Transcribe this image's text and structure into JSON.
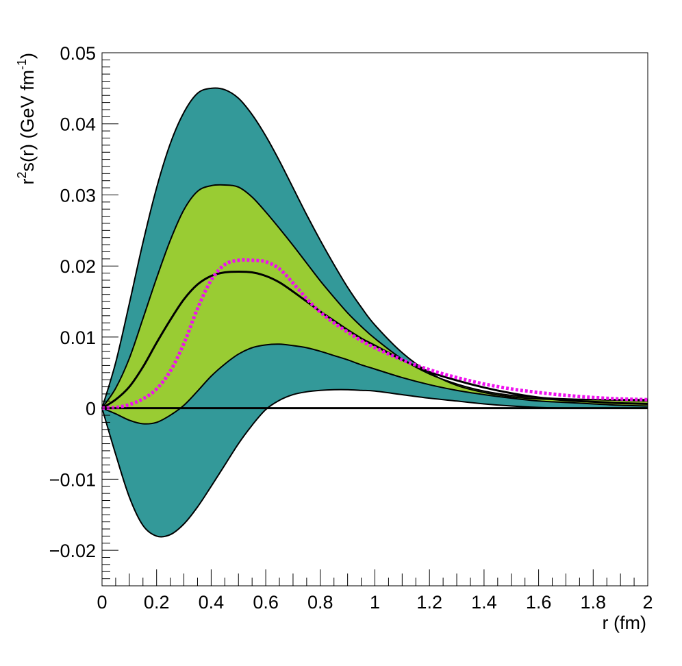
{
  "chart_data": {
    "type": "area",
    "xlabel": "r (fm)",
    "ylabel": {
      "base": "r",
      "sup1": "2",
      "mid": "s(r) (GeV fm",
      "sup2": "-1",
      "end": ")"
    },
    "xlim": [
      0,
      2
    ],
    "ylim": [
      -0.025,
      0.05
    ],
    "x_ticks": [
      0,
      0.2,
      0.4,
      0.6,
      0.8,
      1,
      1.2,
      1.4,
      1.6,
      1.8,
      2
    ],
    "x_tick_labels": [
      "0",
      "0.2",
      "0.4",
      "0.6",
      "0.8",
      "1",
      "1.2",
      "1.4",
      "1.6",
      "1.8",
      "2"
    ],
    "y_ticks": [
      -0.02,
      -0.01,
      0,
      0.01,
      0.02,
      0.03,
      0.04,
      0.05
    ],
    "y_tick_labels": [
      "−0.02",
      "−0.01",
      "0",
      "0.01",
      "0.02",
      "0.03",
      "0.04",
      "0.05"
    ],
    "grid": false,
    "colors": {
      "outer_band": "#339999",
      "inner_band": "#99cc33",
      "central": "#000000",
      "dotted": "#ee11ee"
    },
    "x": [
      0,
      0.05,
      0.1,
      0.15,
      0.2,
      0.25,
      0.3,
      0.35,
      0.4,
      0.45,
      0.5,
      0.55,
      0.6,
      0.65,
      0.7,
      0.75,
      0.8,
      0.85,
      0.9,
      0.95,
      1.0,
      1.1,
      1.2,
      1.3,
      1.4,
      1.5,
      1.6,
      1.7,
      1.8,
      1.9,
      2.0
    ],
    "series": [
      {
        "values": [
          0,
          0.0064,
          0.0147,
          0.0233,
          0.031,
          0.0372,
          0.0416,
          0.0443,
          0.045,
          0.0448,
          0.0436,
          0.0413,
          0.0383,
          0.0348,
          0.031,
          0.0272,
          0.0236,
          0.0202,
          0.017,
          0.0142,
          0.0117,
          0.0078,
          0.005,
          0.0032,
          0.0022,
          0.0016,
          0.0013,
          0.0012,
          0.0012,
          0.0012,
          0.0012
        ]
      },
      {
        "values": [
          0,
          -0.0065,
          -0.0125,
          -0.0165,
          -0.018,
          -0.0178,
          -0.0163,
          -0.0139,
          -0.011,
          -0.008,
          -0.005,
          -0.0024,
          -0.0002,
          0.0011,
          0.0019,
          0.0023,
          0.0025,
          0.0026,
          0.0026,
          0.0025,
          0.0024,
          0.0019,
          0.0014,
          0.001,
          0.0006,
          0.0003,
          0.0001,
          0.0,
          0.0,
          0.0,
          0.0
        ]
      },
      {
        "values": [
          0,
          0.0028,
          0.007,
          0.0126,
          0.0183,
          0.0236,
          0.0279,
          0.0305,
          0.0313,
          0.0314,
          0.0311,
          0.0297,
          0.0276,
          0.0253,
          0.0229,
          0.0204,
          0.0179,
          0.0156,
          0.0134,
          0.0115,
          0.0098,
          0.0069,
          0.0048,
          0.0034,
          0.0024,
          0.0018,
          0.0015,
          0.0013,
          0.0012,
          0.0011,
          0.001
        ]
      },
      {
        "values": [
          0,
          -0.0008,
          -0.0017,
          -0.0022,
          -0.002,
          -0.001,
          0.0004,
          0.0024,
          0.0045,
          0.0062,
          0.0076,
          0.0085,
          0.0089,
          0.009,
          0.0088,
          0.0085,
          0.008,
          0.0074,
          0.0068,
          0.0061,
          0.0055,
          0.0043,
          0.0033,
          0.0025,
          0.0019,
          0.0014,
          0.001,
          0.0008,
          0.0006,
          0.0004,
          0.0003
        ]
      },
      {
        "values": [
          0,
          0.0012,
          0.003,
          0.0058,
          0.0092,
          0.0124,
          0.0153,
          0.0174,
          0.0186,
          0.0191,
          0.0192,
          0.0191,
          0.0186,
          0.0177,
          0.0164,
          0.015,
          0.0136,
          0.0123,
          0.011,
          0.0098,
          0.0088,
          0.0068,
          0.0051,
          0.0039,
          0.0029,
          0.0021,
          0.0015,
          0.0011,
          0.0009,
          0.0007,
          0.0006
        ]
      },
      {
        "values": [
          0,
          0.0001,
          0.0005,
          0.0013,
          0.0027,
          0.0052,
          0.0091,
          0.014,
          0.018,
          0.0202,
          0.0208,
          0.0208,
          0.0206,
          0.0196,
          0.0176,
          0.0154,
          0.0135,
          0.012,
          0.0107,
          0.0095,
          0.0085,
          0.0068,
          0.0054,
          0.0043,
          0.0034,
          0.0027,
          0.0022,
          0.0018,
          0.0015,
          0.0013,
          0.0012
        ]
      }
    ]
  }
}
